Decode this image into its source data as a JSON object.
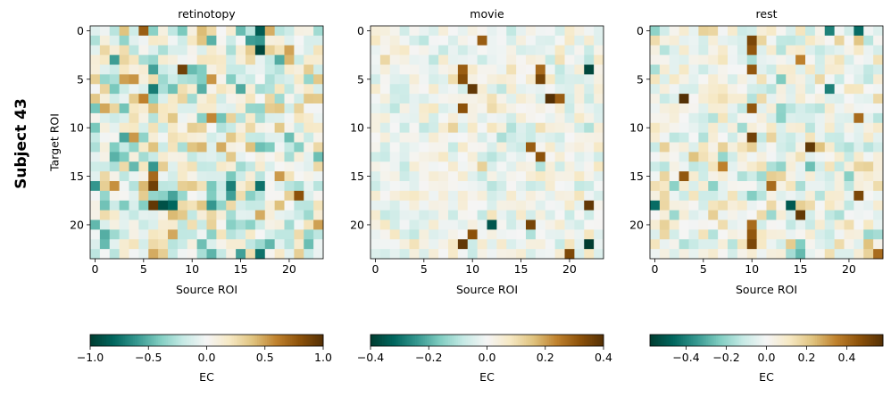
{
  "figure": {
    "subject_label": "Subject 43",
    "ylabel": "Target ROI"
  },
  "colormap": {
    "name": "BrBG_r",
    "stops": [
      "#003c30",
      "#01665e",
      "#35978f",
      "#80cdc1",
      "#c7eae5",
      "#f5f5f5",
      "#f6e8c3",
      "#dfc27d",
      "#bf812d",
      "#8c510a",
      "#543005"
    ]
  },
  "chart_data": [
    {
      "type": "heatmap",
      "title": "retinotopy",
      "xlabel": "Source ROI",
      "ylabel": "Target ROI",
      "n": 24,
      "x_ticks": [
        0,
        5,
        10,
        15,
        20
      ],
      "y_ticks": [
        0,
        5,
        10,
        15,
        20
      ],
      "vmin": -1.0,
      "vmax": 1.0,
      "colorbar": {
        "label": "EC",
        "ticks": [
          -1.0,
          -0.5,
          0.0,
          0.5,
          1.0
        ],
        "tick_labels": [
          "−1.0",
          "−0.5",
          "0.0",
          "0.5",
          "1.0"
        ]
      },
      "seed": 4301,
      "spread": 0.3,
      "highlights": [
        {
          "row": 0,
          "col": 5,
          "value": 0.75
        },
        {
          "row": 0,
          "col": 17,
          "value": -0.85
        },
        {
          "row": 1,
          "col": 17,
          "value": -0.6
        },
        {
          "row": 2,
          "col": 17,
          "value": -0.95
        },
        {
          "row": 4,
          "col": 9,
          "value": 0.9
        },
        {
          "row": 7,
          "col": 5,
          "value": 0.6
        },
        {
          "row": 11,
          "col": 3,
          "value": -0.55
        },
        {
          "row": 12,
          "col": 17,
          "value": -0.45
        },
        {
          "row": 15,
          "col": 6,
          "value": 0.7
        },
        {
          "row": 16,
          "col": 6,
          "value": 0.9
        },
        {
          "row": 16,
          "col": 14,
          "value": -0.7
        },
        {
          "row": 16,
          "col": 17,
          "value": -0.75
        },
        {
          "row": 17,
          "col": 21,
          "value": 0.8
        },
        {
          "row": 18,
          "col": 6,
          "value": 0.95
        },
        {
          "row": 18,
          "col": 7,
          "value": -0.9
        },
        {
          "row": 18,
          "col": 8,
          "value": -0.8
        },
        {
          "row": 18,
          "col": 12,
          "value": -0.6
        },
        {
          "row": 23,
          "col": 17,
          "value": -0.75
        }
      ]
    },
    {
      "type": "heatmap",
      "title": "movie",
      "xlabel": "Source ROI",
      "ylabel": "",
      "n": 24,
      "x_ticks": [
        0,
        5,
        10,
        15,
        20
      ],
      "y_ticks": [
        0,
        5,
        10,
        15,
        20
      ],
      "vmin": -0.4,
      "vmax": 0.4,
      "colorbar": {
        "label": "EC",
        "ticks": [
          -0.4,
          -0.2,
          0.0,
          0.2,
          0.4
        ],
        "tick_labels": [
          "−0.4",
          "−0.2",
          "0.0",
          "0.2",
          "0.4"
        ]
      },
      "seed": 4302,
      "spread": 0.14,
      "highlights": [
        {
          "row": 1,
          "col": 11,
          "value": 0.3
        },
        {
          "row": 4,
          "col": 9,
          "value": 0.3
        },
        {
          "row": 4,
          "col": 17,
          "value": 0.28
        },
        {
          "row": 4,
          "col": 22,
          "value": -0.38
        },
        {
          "row": 5,
          "col": 9,
          "value": 0.33
        },
        {
          "row": 5,
          "col": 17,
          "value": 0.35
        },
        {
          "row": 6,
          "col": 10,
          "value": 0.38
        },
        {
          "row": 7,
          "col": 18,
          "value": 0.4
        },
        {
          "row": 7,
          "col": 19,
          "value": 0.3
        },
        {
          "row": 8,
          "col": 9,
          "value": 0.32
        },
        {
          "row": 12,
          "col": 16,
          "value": 0.3
        },
        {
          "row": 13,
          "col": 17,
          "value": 0.32
        },
        {
          "row": 18,
          "col": 22,
          "value": 0.38
        },
        {
          "row": 20,
          "col": 12,
          "value": -0.35
        },
        {
          "row": 20,
          "col": 16,
          "value": 0.35
        },
        {
          "row": 21,
          "col": 10,
          "value": 0.32
        },
        {
          "row": 22,
          "col": 9,
          "value": 0.38
        },
        {
          "row": 22,
          "col": 22,
          "value": -0.4
        },
        {
          "row": 23,
          "col": 20,
          "value": 0.34
        }
      ]
    },
    {
      "type": "heatmap",
      "title": "rest",
      "xlabel": "Source ROI",
      "ylabel": "",
      "n": 24,
      "x_ticks": [
        0,
        5,
        10,
        15,
        20
      ],
      "y_ticks": [
        0,
        5,
        10,
        15,
        20
      ],
      "vmin": -0.58,
      "vmax": 0.58,
      "colorbar": {
        "label": "EC",
        "ticks": [
          -0.4,
          -0.2,
          0.0,
          0.2,
          0.4
        ],
        "tick_labels": [
          "−0.4",
          "−0.2",
          "0.0",
          "0.2",
          "0.4"
        ]
      },
      "seed": 4303,
      "spread": 0.2,
      "highlights": [
        {
          "row": 0,
          "col": 18,
          "value": -0.4
        },
        {
          "row": 0,
          "col": 21,
          "value": -0.45
        },
        {
          "row": 1,
          "col": 10,
          "value": 0.5
        },
        {
          "row": 2,
          "col": 10,
          "value": 0.45
        },
        {
          "row": 3,
          "col": 15,
          "value": 0.35
        },
        {
          "row": 4,
          "col": 10,
          "value": 0.45
        },
        {
          "row": 6,
          "col": 18,
          "value": -0.4
        },
        {
          "row": 7,
          "col": 3,
          "value": 0.58
        },
        {
          "row": 8,
          "col": 10,
          "value": 0.45
        },
        {
          "row": 9,
          "col": 21,
          "value": 0.4
        },
        {
          "row": 11,
          "col": 10,
          "value": 0.52
        },
        {
          "row": 12,
          "col": 16,
          "value": 0.55
        },
        {
          "row": 14,
          "col": 7,
          "value": 0.35
        },
        {
          "row": 15,
          "col": 3,
          "value": 0.45
        },
        {
          "row": 16,
          "col": 12,
          "value": 0.4
        },
        {
          "row": 17,
          "col": 21,
          "value": 0.5
        },
        {
          "row": 18,
          "col": 0,
          "value": -0.45
        },
        {
          "row": 18,
          "col": 14,
          "value": -0.5
        },
        {
          "row": 19,
          "col": 15,
          "value": 0.55
        },
        {
          "row": 20,
          "col": 10,
          "value": 0.4
        },
        {
          "row": 21,
          "col": 10,
          "value": 0.45
        },
        {
          "row": 22,
          "col": 10,
          "value": 0.5
        },
        {
          "row": 23,
          "col": 23,
          "value": 0.4
        }
      ]
    }
  ]
}
